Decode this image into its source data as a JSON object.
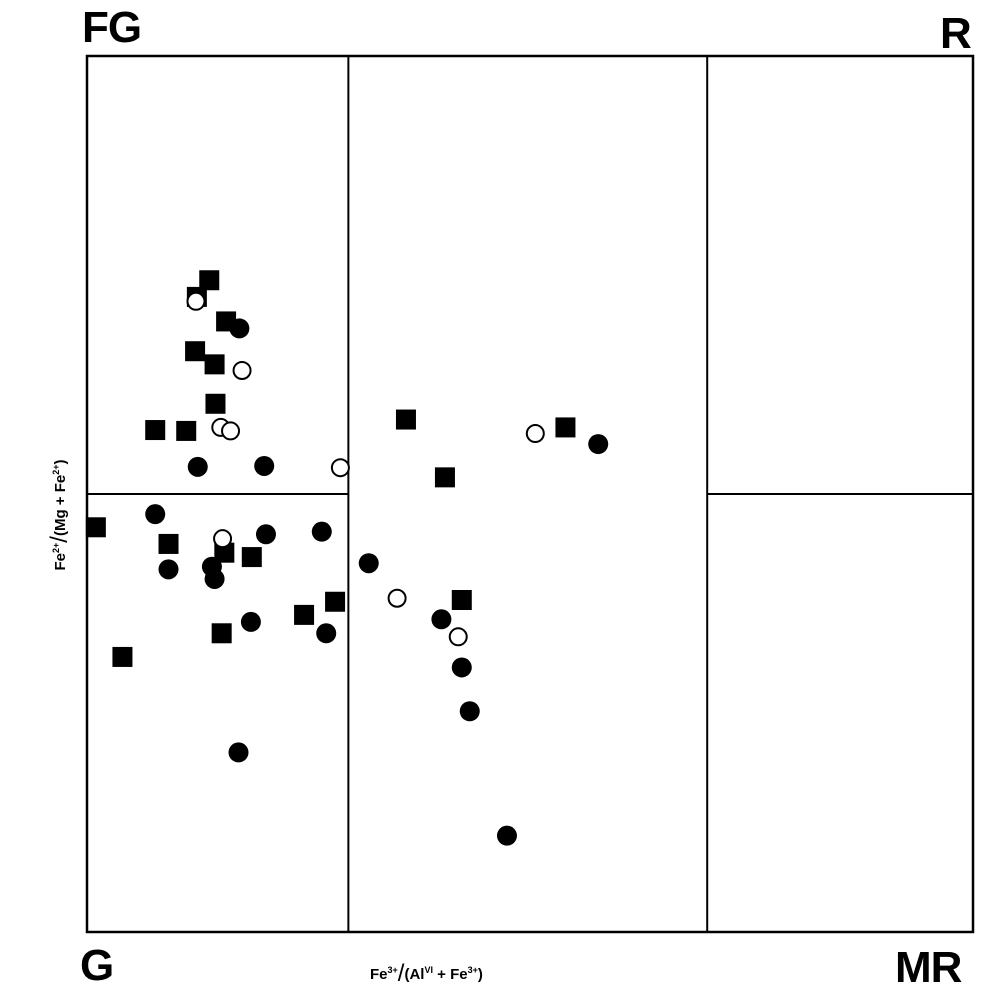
{
  "chart_data": {
    "type": "scatter",
    "title": "",
    "corner_labels": {
      "top_left": "FG",
      "top_right": "R",
      "bottom_left": "G",
      "bottom_right": "MR"
    },
    "xlabel": {
      "num": "Fe",
      "num_sup": "3+",
      "den_a": "(Al",
      "den_a_sup": "VI",
      "den_b": "+ Fe",
      "den_b_sup": "3+",
      "close": ")"
    },
    "ylabel": {
      "num": "Fe",
      "num_sup": "2+",
      "den_a": "(Mg",
      "den_b": "+ Fe",
      "den_b_sup": "2+",
      "close": ")"
    },
    "xlim": [
      0,
      1
    ],
    "ylim": [
      0,
      1
    ],
    "grid": false,
    "dividers": {
      "x": [
        0.295,
        0.7
      ],
      "y": [
        0.5
      ]
    },
    "marker_color": "#000000",
    "series": [
      {
        "marker": "filled-square",
        "points": [
          [
            0.01,
            0.462
          ],
          [
            0.04,
            0.314
          ],
          [
            0.155,
            0.433
          ],
          [
            0.145,
            0.603
          ],
          [
            0.122,
            0.663
          ],
          [
            0.124,
            0.725
          ],
          [
            0.138,
            0.744
          ],
          [
            0.144,
            0.648
          ],
          [
            0.157,
            0.697
          ],
          [
            0.077,
            0.573
          ],
          [
            0.112,
            0.572
          ],
          [
            0.092,
            0.443
          ],
          [
            0.186,
            0.428
          ],
          [
            0.152,
            0.341
          ],
          [
            0.245,
            0.362
          ],
          [
            0.28,
            0.377
          ],
          [
            0.36,
            0.585
          ],
          [
            0.404,
            0.519
          ],
          [
            0.423,
            0.379
          ],
          [
            0.54,
            0.576
          ]
        ]
      },
      {
        "marker": "filled-circle",
        "points": [
          [
            0.172,
            0.689
          ],
          [
            0.125,
            0.531
          ],
          [
            0.2,
            0.532
          ],
          [
            0.077,
            0.477
          ],
          [
            0.092,
            0.414
          ],
          [
            0.141,
            0.417
          ],
          [
            0.202,
            0.454
          ],
          [
            0.144,
            0.403
          ],
          [
            0.185,
            0.354
          ],
          [
            0.27,
            0.341
          ],
          [
            0.265,
            0.457
          ],
          [
            0.318,
            0.421
          ],
          [
            0.4,
            0.357
          ],
          [
            0.423,
            0.302
          ],
          [
            0.432,
            0.252
          ],
          [
            0.171,
            0.205
          ],
          [
            0.474,
            0.11
          ],
          [
            0.577,
            0.557
          ]
        ]
      },
      {
        "marker": "open-circle",
        "points": [
          [
            0.123,
            0.72
          ],
          [
            0.175,
            0.641
          ],
          [
            0.151,
            0.576
          ],
          [
            0.162,
            0.572
          ],
          [
            0.286,
            0.53
          ],
          [
            0.153,
            0.449
          ],
          [
            0.35,
            0.381
          ],
          [
            0.419,
            0.337
          ],
          [
            0.506,
            0.569
          ]
        ]
      }
    ]
  }
}
